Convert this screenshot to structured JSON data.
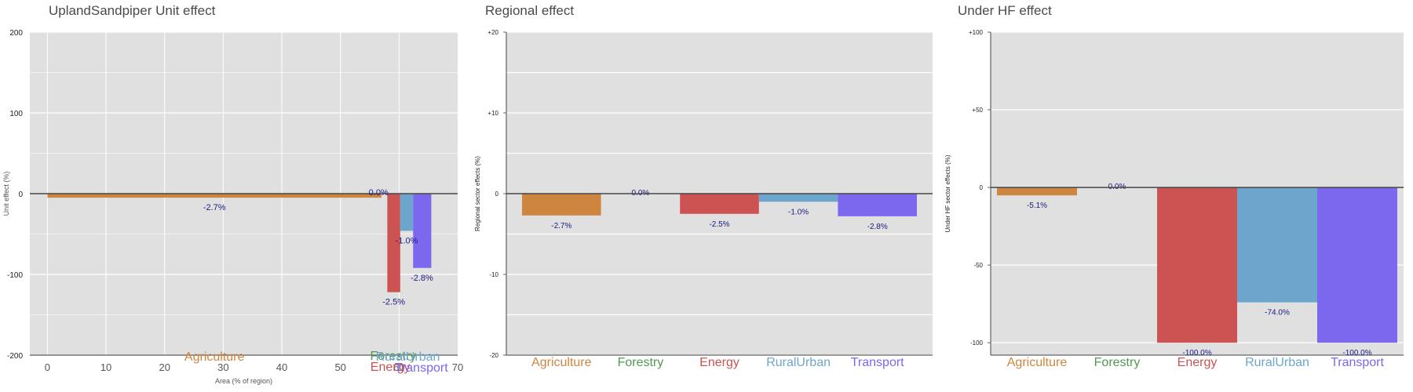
{
  "chart_data": [
    {
      "type": "bar",
      "variant": "variable-width",
      "title": "UplandSandpiper Unit effect",
      "xlabel": "Area (% of region)",
      "ylabel": "Unit effect (%)",
      "xlim": [
        -3,
        70
      ],
      "ylim": [
        -200,
        200
      ],
      "xticks": [
        0,
        10,
        20,
        30,
        40,
        50,
        60,
        70
      ],
      "yticks": [
        200,
        100,
        0,
        -100,
        -200
      ],
      "ytick_labels": [
        "200",
        "100",
        "0",
        "-100",
        "-200"
      ],
      "grid": true,
      "bars": [
        {
          "category": "Agriculture",
          "color": "#CD853F",
          "x_start": 0,
          "x_end": 57,
          "value": -5,
          "label": "-2.7%"
        },
        {
          "category": "Forestry",
          "color": "#4F9A4F",
          "x_start": 57,
          "x_end": 57.1,
          "value": 0,
          "label": "0.0%"
        },
        {
          "category": "Energy",
          "color": "#CD5252",
          "x_start": 58,
          "x_end": 60.2,
          "value": -122,
          "label": "-2.5%"
        },
        {
          "category": "RuralUrban",
          "color": "#6CA6CD",
          "x_start": 60.2,
          "x_end": 62.4,
          "value": -46,
          "label": "-1.0%"
        },
        {
          "category": "Transport",
          "color": "#7B68EE",
          "x_start": 62.4,
          "x_end": 65.5,
          "value": -92,
          "label": "-2.8%"
        }
      ]
    },
    {
      "type": "bar",
      "title": "Regional effect",
      "ylabel": "Regional sector effects (%)",
      "ylim": [
        -20,
        20
      ],
      "yticks": [
        20,
        10,
        0,
        -10,
        -20
      ],
      "ytick_labels": [
        "+20",
        "+10",
        "0",
        "-10",
        "-20"
      ],
      "grid": true,
      "categories": [
        "Agriculture",
        "Forestry",
        "Energy",
        "RuralUrban",
        "Transport"
      ],
      "values": [
        -2.7,
        0.0,
        -2.5,
        -1.0,
        -2.8
      ],
      "labels": [
        "-2.7%",
        "0.0%",
        "-2.5%",
        "-1.0%",
        "-2.8%"
      ],
      "colors": [
        "#CD853F",
        "#4F9A4F",
        "#CD5252",
        "#6CA6CD",
        "#7B68EE"
      ]
    },
    {
      "type": "bar",
      "title": "Under HF effect",
      "ylabel": "Under HF sector effects (%)",
      "ylim": [
        -108,
        100
      ],
      "yticks": [
        100,
        50,
        0,
        -50,
        -100
      ],
      "ytick_labels": [
        "+100",
        "+50",
        "0",
        "-50",
        "-100"
      ],
      "grid": true,
      "categories": [
        "Agriculture",
        "Forestry",
        "Energy",
        "RuralUrban",
        "Transport"
      ],
      "values": [
        -5.1,
        0.0,
        -100.0,
        -74.0,
        -100.0
      ],
      "labels": [
        "-5.1%",
        "0.0%",
        "-100.0%",
        "-74.0%",
        "-100.0%"
      ],
      "colors": [
        "#CD853F",
        "#4F9A4F",
        "#CD5252",
        "#6CA6CD",
        "#7B68EE"
      ]
    }
  ]
}
